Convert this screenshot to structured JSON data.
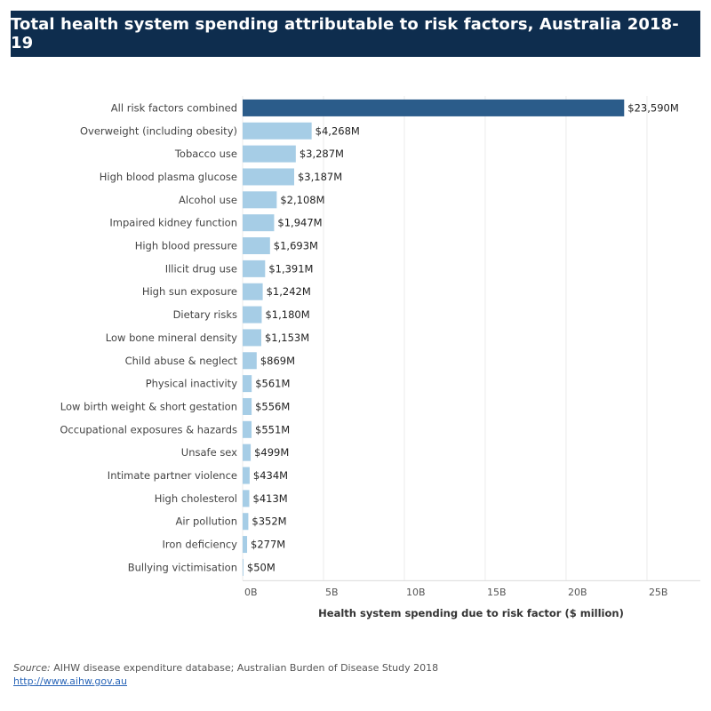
{
  "title": "Total health system spending attributable to risk factors, Australia 2018-19",
  "chart_data": {
    "type": "bar",
    "orientation": "horizontal",
    "categories": [
      "All risk factors combined",
      "Overweight (including obesity)",
      "Tobacco use",
      "High blood plasma glucose",
      "Alcohol use",
      "Impaired kidney function",
      "High blood pressure",
      "Illicit drug use",
      "High sun exposure",
      "Dietary risks",
      "Low bone mineral density",
      "Child abuse & neglect",
      "Physical inactivity",
      "Low birth weight & short gestation",
      "Occupational exposures & hazards",
      "Unsafe sex",
      "Intimate partner violence",
      "High cholesterol",
      "Air pollution",
      "Iron deficiency",
      "Bullying victimisation"
    ],
    "values": [
      23590,
      4268,
      3287,
      3187,
      2108,
      1947,
      1693,
      1391,
      1242,
      1180,
      1153,
      869,
      561,
      556,
      551,
      499,
      434,
      413,
      352,
      277,
      50
    ],
    "value_labels": [
      "$23,590M",
      "$4,268M",
      "$3,287M",
      "$3,187M",
      "$2,108M",
      "$1,947M",
      "$1,693M",
      "$1,391M",
      "$1,242M",
      "$1,180M",
      "$1,153M",
      "$869M",
      "$561M",
      "$556M",
      "$551M",
      "$499M",
      "$434M",
      "$413M",
      "$352M",
      "$277M",
      "$50M"
    ],
    "xlabel": "Health system spending due to risk factor ($ million)",
    "xticks": [
      0,
      5000,
      10000,
      15000,
      20000,
      25000
    ],
    "xtick_labels": [
      "0B",
      "5B",
      "10B",
      "15B",
      "20B",
      "25B"
    ],
    "xlim": [
      0,
      28300
    ],
    "grid": true,
    "colors": {
      "highlight": "#2b5c8a",
      "bar": "#a6cde6",
      "grid": "#ebebeb"
    }
  },
  "footer": {
    "source_label": "Source:",
    "source_text": " AIHW disease expenditure database; Australian Burden of Disease Study 2018",
    "link": "http://www.aihw.gov.au"
  }
}
